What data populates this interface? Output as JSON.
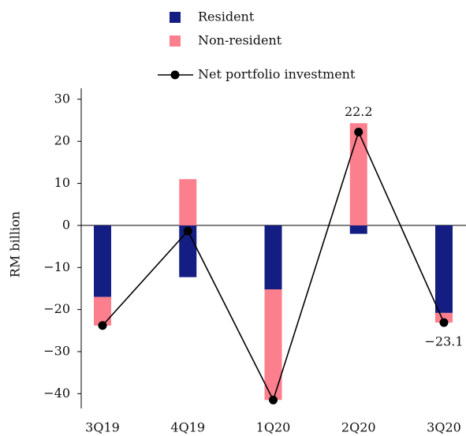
{
  "chart_data": {
    "type": "bar",
    "y_label": "RM billion",
    "categories": [
      "3Q19",
      "4Q19",
      "1Q20",
      "2Q20",
      "3Q20"
    ],
    "series": [
      {
        "name": "Resident",
        "color": "#141e82",
        "values": [
          -17,
          -12.3,
          -15.2,
          -2,
          -20.8
        ]
      },
      {
        "name": "Non-resident",
        "color": "#fc7f8e",
        "values": [
          -6.8,
          11,
          -26.3,
          24.3,
          -2.3
        ]
      },
      {
        "name": "Net portfolio investment",
        "type": "line",
        "color": "#000000",
        "values": [
          -23.8,
          -1.3,
          -41.5,
          22.2,
          -23.1
        ],
        "value_labels": [
          null,
          null,
          null,
          "22.2",
          "−23.1"
        ]
      }
    ],
    "ylim": [
      -43.5,
      32.6
    ],
    "yticks": [
      {
        "value": -40,
        "label": "−40"
      },
      {
        "value": -30,
        "label": "−30"
      },
      {
        "value": -20,
        "label": "−20"
      },
      {
        "value": -10,
        "label": "−10"
      },
      0,
      10,
      20,
      30
    ]
  }
}
